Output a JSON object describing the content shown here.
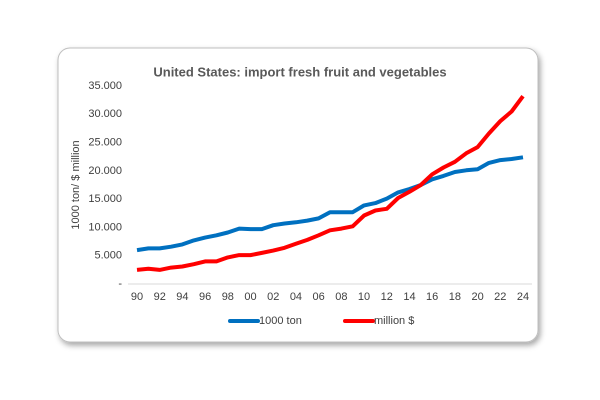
{
  "chart_data": {
    "type": "line",
    "title": "United States: import fresh fruit and vegetables",
    "y_label": "1000 ton/ $ million",
    "categories": [
      "90",
      null,
      "92",
      null,
      "94",
      null,
      "96",
      null,
      "98",
      null,
      "00",
      null,
      "02",
      null,
      "04",
      null,
      "06",
      null,
      "08",
      null,
      "10",
      null,
      "12",
      null,
      "14",
      null,
      "16",
      null,
      "18",
      null,
      "20",
      null,
      "22",
      null,
      "24"
    ],
    "series": [
      {
        "name": "1000 ton",
        "color": "#0070c0",
        "values": [
          6000,
          6300,
          6300,
          6600,
          7000,
          7700,
          8200,
          8600,
          9100,
          9800,
          9700,
          9700,
          10400,
          10700,
          10900,
          11200,
          11600,
          12700,
          12700,
          12700,
          13900,
          14300,
          15100,
          16200,
          16800,
          17500,
          18500,
          19100,
          19800,
          20100,
          20300,
          21400,
          21900,
          22100,
          22400
        ]
      },
      {
        "name": "million $",
        "color": "#ff0000",
        "values": [
          2500,
          2700,
          2500,
          2900,
          3100,
          3500,
          4000,
          4000,
          4700,
          5100,
          5100,
          5500,
          5900,
          6400,
          7100,
          7800,
          8600,
          9500,
          9800,
          10200,
          12100,
          13000,
          13300,
          15200,
          16300,
          17500,
          19400,
          20600,
          21600,
          23100,
          24200,
          26600,
          28800,
          30500,
          33200
        ]
      }
    ],
    "ylim": [
      0,
      35000
    ],
    "yticks": [
      {
        "value": 0,
        "label": "-"
      },
      {
        "value": 5000,
        "label": "5.000"
      },
      {
        "value": 10000,
        "label": "10.000"
      },
      {
        "value": 15000,
        "label": "15.000"
      },
      {
        "value": 20000,
        "label": "20.000"
      },
      {
        "value": 25000,
        "label": "25.000"
      },
      {
        "value": 30000,
        "label": "30.000"
      },
      {
        "value": 35000,
        "label": "35.000"
      }
    ],
    "grid": false,
    "legend": "bottom"
  }
}
